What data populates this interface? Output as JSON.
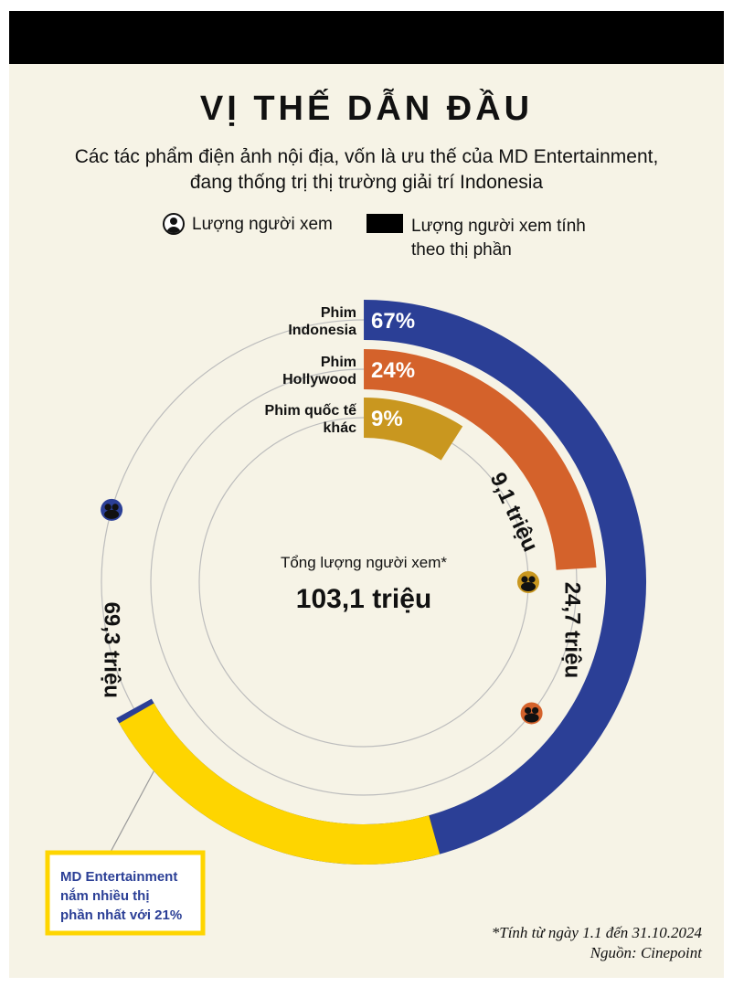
{
  "title": "VỊ THẾ DẪN ĐẦU",
  "subtitle_line1": "Các tác phẩm điện ảnh nội địa, vốn là ưu thế của MD Entertainment,",
  "subtitle_line2": "đang thống trị thị trường giải trí Indonesia",
  "legend": {
    "viewers": "Lượng người xem",
    "share_line1": "Lượng người xem tính",
    "share_line2": "theo thị phần"
  },
  "center": {
    "label": "Tổng lượng người xem*",
    "value": "103,1 triệu"
  },
  "callout": {
    "line1": "MD Entertainment",
    "line2": "nắm nhiều thị",
    "line3": "phần nhất với 21%"
  },
  "footnote": "*Tính từ ngày 1.1 đến 31.10.2024",
  "source": "Nguồn: Cinepoint",
  "colors": {
    "indonesia": "#2b3f96",
    "hollywood": "#d4622b",
    "other": "#c9971f",
    "md_entertainment": "#fed500",
    "background": "#f6f3e6"
  },
  "chart_data": {
    "type": "radial-bar",
    "total": 103.1,
    "total_unit": "triệu",
    "series": [
      {
        "name_line1": "Phim",
        "name_line2": "Indonesia",
        "share": 67,
        "share_label": "67%",
        "viewers": 69.3,
        "viewers_label": "69,3 triệu",
        "color": "#2b3f96"
      },
      {
        "name_line1": "Phim",
        "name_line2": "Hollywood",
        "share": 24,
        "share_label": "24%",
        "viewers": 24.7,
        "viewers_label": "24,7 triệu",
        "color": "#d4622b"
      },
      {
        "name_line1": "Phim quốc tế",
        "name_line2": "khác",
        "share": 9,
        "share_label": "9%",
        "viewers": 9.1,
        "viewers_label": "9,1 triệu",
        "color": "#c9971f"
      }
    ],
    "highlight": {
      "name": "MD Entertainment",
      "share": 21,
      "color": "#fed500"
    }
  }
}
